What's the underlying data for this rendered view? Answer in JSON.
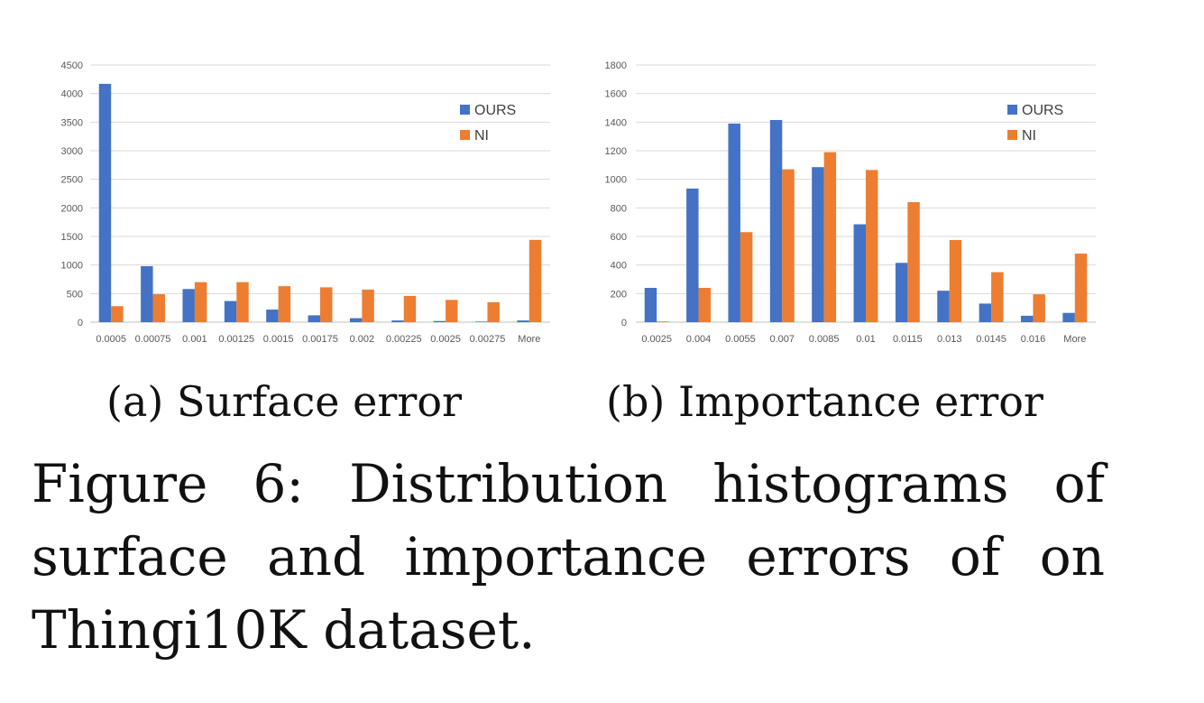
{
  "subcaptions": {
    "a": "(a) Surface error",
    "b": "(b) Importance error"
  },
  "caption": "Figure 6:  Distribution histograms of surface and importance errors of on Thingi10K dataset.",
  "colors": {
    "ours": "#4472C4",
    "ni": "#ED7D31",
    "grid": "#D9D9D9",
    "axis": "#BFBFBF",
    "text": "#595959"
  },
  "chart_data": [
    {
      "type": "bar",
      "title": "",
      "xlabel": "",
      "ylabel": "",
      "categories": [
        "0.0005",
        "0.00075",
        "0.001",
        "0.00125",
        "0.0015",
        "0.00175",
        "0.002",
        "0.00225",
        "0.0025",
        "0.00275",
        "More"
      ],
      "series": [
        {
          "name": "OURS",
          "values": [
            4170,
            980,
            580,
            370,
            220,
            120,
            70,
            30,
            20,
            10,
            30
          ]
        },
        {
          "name": "NI",
          "values": [
            280,
            490,
            700,
            700,
            630,
            610,
            570,
            460,
            390,
            350,
            1440
          ]
        }
      ],
      "ylim": [
        0,
        4500
      ],
      "yticks": [
        0,
        500,
        1000,
        1500,
        2000,
        2500,
        3000,
        3500,
        4000,
        4500
      ],
      "grid": true,
      "legend": "right"
    },
    {
      "type": "bar",
      "title": "",
      "xlabel": "",
      "ylabel": "",
      "categories": [
        "0.0025",
        "0.004",
        "0.0055",
        "0.007",
        "0.0085",
        "0.01",
        "0.0115",
        "0.013",
        "0.0145",
        "0.016",
        "More"
      ],
      "series": [
        {
          "name": "OURS",
          "values": [
            240,
            935,
            1390,
            1415,
            1085,
            685,
            415,
            220,
            130,
            45,
            65
          ]
        },
        {
          "name": "NI",
          "values": [
            5,
            240,
            630,
            1070,
            1190,
            1065,
            840,
            575,
            350,
            195,
            480
          ]
        }
      ],
      "ylim": [
        0,
        1800
      ],
      "yticks": [
        0,
        200,
        400,
        600,
        800,
        1000,
        1200,
        1400,
        1600,
        1800
      ],
      "grid": true,
      "legend": "right"
    }
  ]
}
